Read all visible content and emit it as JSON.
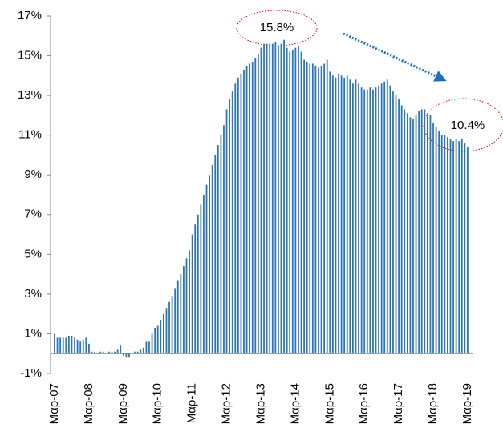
{
  "chart_data": {
    "type": "bar",
    "categories": [
      "Μαρ-07",
      null,
      null,
      null,
      null,
      null,
      null,
      null,
      null,
      null,
      null,
      null,
      "Μαρ-08",
      null,
      null,
      null,
      null,
      null,
      null,
      null,
      null,
      null,
      null,
      null,
      "Μαρ-09",
      null,
      null,
      null,
      null,
      null,
      null,
      null,
      null,
      null,
      null,
      null,
      "Μαρ-10",
      null,
      null,
      null,
      null,
      null,
      null,
      null,
      null,
      null,
      null,
      null,
      "Μαρ-11",
      null,
      null,
      null,
      null,
      null,
      null,
      null,
      null,
      null,
      null,
      null,
      "Μαρ-12",
      null,
      null,
      null,
      null,
      null,
      null,
      null,
      null,
      null,
      null,
      null,
      "Μαρ-13",
      null,
      null,
      null,
      null,
      null,
      null,
      null,
      null,
      null,
      null,
      null,
      "Μαρ-14",
      null,
      null,
      null,
      null,
      null,
      null,
      null,
      null,
      null,
      null,
      null,
      "Μαρ-15",
      null,
      null,
      null,
      null,
      null,
      null,
      null,
      null,
      null,
      null,
      null,
      "Μαρ-16",
      null,
      null,
      null,
      null,
      null,
      null,
      null,
      null,
      null,
      null,
      null,
      "Μαρ-17",
      null,
      null,
      null,
      null,
      null,
      null,
      null,
      null,
      null,
      null,
      null,
      "Μαρ-18",
      null,
      null,
      null,
      null,
      null,
      null,
      null,
      null,
      null,
      null,
      null,
      "Μαρ-19"
    ],
    "values": [
      1.0,
      0.8,
      0.8,
      0.8,
      0.8,
      0.9,
      0.9,
      0.8,
      0.7,
      0.6,
      0.7,
      0.8,
      0.5,
      0.1,
      0.1,
      0.0,
      0.1,
      0.1,
      0.0,
      0.1,
      0.1,
      0.1,
      0.2,
      0.4,
      -0.1,
      -0.2,
      -0.2,
      0.0,
      0.1,
      0.1,
      0.2,
      0.3,
      0.6,
      0.6,
      1.0,
      1.3,
      1.4,
      1.7,
      2.0,
      2.3,
      2.6,
      2.9,
      3.3,
      3.7,
      4.0,
      4.4,
      4.8,
      5.2,
      6.0,
      6.5,
      7.0,
      7.5,
      8.0,
      8.5,
      9.0,
      9.5,
      10.0,
      10.5,
      11.0,
      11.5,
      12.3,
      12.8,
      13.2,
      13.6,
      13.9,
      14.1,
      14.3,
      14.5,
      14.6,
      14.7,
      14.9,
      15.1,
      15.4,
      15.6,
      15.6,
      15.6,
      15.6,
      15.7,
      15.5,
      15.6,
      15.8,
      15.4,
      15.2,
      15.3,
      15.4,
      15.5,
      15.2,
      14.8,
      14.7,
      14.6,
      14.6,
      14.5,
      14.4,
      14.5,
      14.6,
      14.8,
      14.2,
      14.0,
      13.9,
      14.1,
      14.0,
      13.9,
      14.0,
      13.8,
      13.6,
      13.8,
      13.6,
      13.4,
      13.3,
      13.3,
      13.4,
      13.3,
      13.4,
      13.5,
      13.6,
      13.7,
      13.8,
      13.5,
      13.2,
      13.0,
      12.8,
      12.5,
      12.3,
      12.1,
      11.9,
      11.8,
      12.0,
      12.2,
      12.3,
      12.3,
      12.1,
      12.0,
      11.6,
      11.4,
      11.2,
      11.0,
      11.0,
      10.9,
      10.8,
      10.7,
      10.8,
      10.7,
      10.8,
      10.6,
      10.4
    ],
    "color": "#2e75b6",
    "ylim": [
      -1,
      17
    ],
    "yticks": [
      {
        "value": -1,
        "label": "-1%"
      },
      {
        "value": 1,
        "label": "1%"
      },
      {
        "value": 3,
        "label": "3%"
      },
      {
        "value": 5,
        "label": "5%"
      },
      {
        "value": 7,
        "label": "7%"
      },
      {
        "value": 9,
        "label": "9%"
      },
      {
        "value": 11,
        "label": "11%"
      },
      {
        "value": 13,
        "label": "13%"
      },
      {
        "value": 15,
        "label": "15%"
      },
      {
        "value": 17,
        "label": "17%"
      }
    ],
    "grid": false,
    "annotations": [
      {
        "text": "15.8%"
      },
      {
        "text": "10.4%"
      }
    ]
  }
}
